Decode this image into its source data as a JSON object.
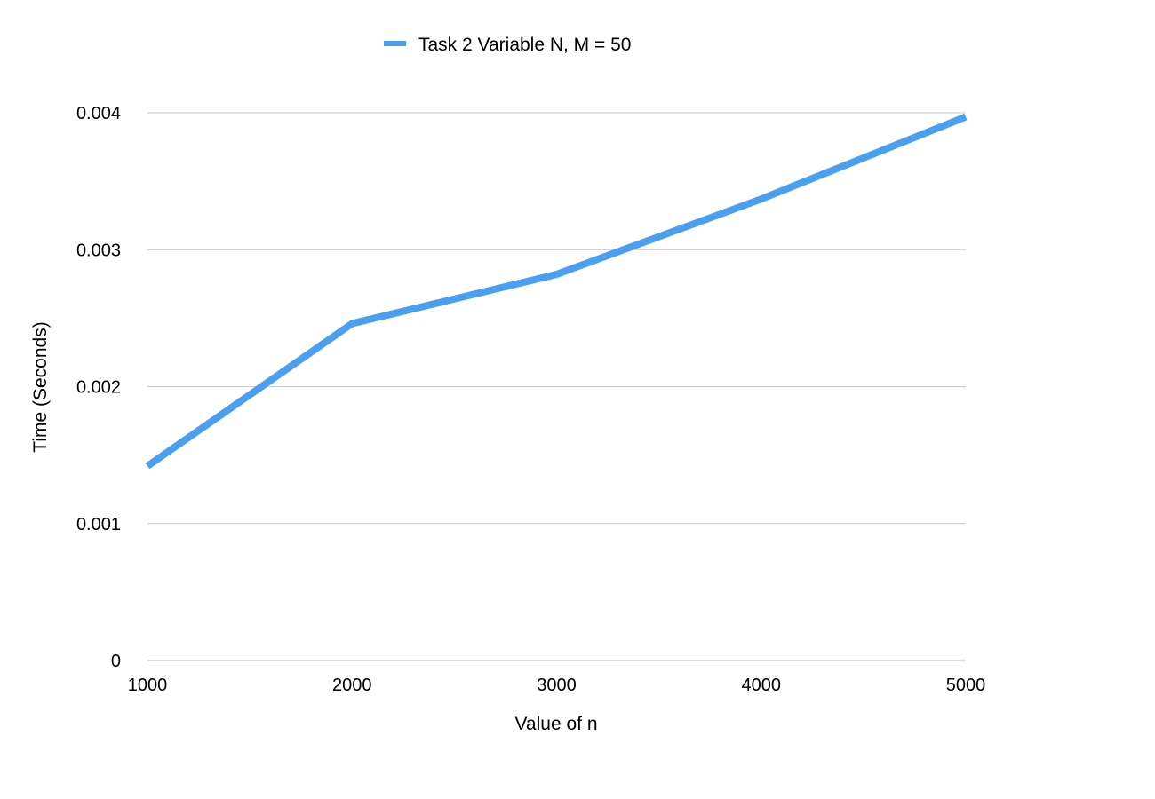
{
  "chart_data": {
    "type": "line",
    "title": "",
    "xlabel": "Value of n",
    "ylabel": "Time (Seconds)",
    "x": [
      1000,
      2000,
      3000,
      4000,
      5000
    ],
    "xticks": [
      "1000",
      "2000",
      "3000",
      "4000",
      "5000"
    ],
    "yticks": [
      "0",
      "0.001",
      "0.002",
      "0.003",
      "0.004"
    ],
    "xlim": [
      1000,
      5000
    ],
    "ylim": [
      0,
      0.004
    ],
    "grid": "horizontal",
    "legend_position": "top-center",
    "series": [
      {
        "name": "Task 2 Variable N, M = 50",
        "values": [
          0.00142,
          0.00246,
          0.00282,
          0.00337,
          0.00397
        ],
        "color": "#4a9ff0"
      }
    ]
  }
}
